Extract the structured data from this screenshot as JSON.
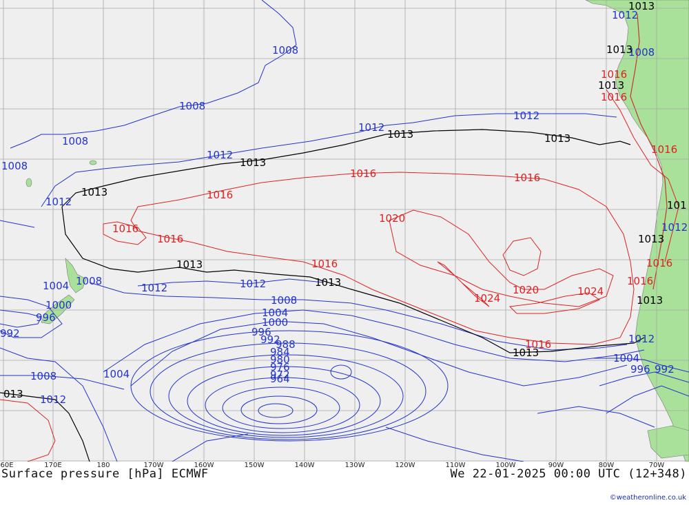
{
  "title_left": "Surface pressure [hPa] ECMWF",
  "title_right": "We 22-01-2025 00:00 UTC (12+348)",
  "credit": "©weatheronline.co.uk",
  "colors": {
    "ocean": "#efefef",
    "land": "#a9e09a",
    "grid": "#a8a8a8",
    "isobar_low": "#2233cc",
    "isobar_mid": "#000000",
    "isobar_high": "#dd2222"
  },
  "longitude_labels": [
    "60E",
    "170E",
    "180",
    "170W",
    "160W",
    "150W",
    "140W",
    "130W",
    "120W",
    "110W",
    "100W",
    "90W",
    "80W",
    "70W"
  ],
  "isobar_labels": [
    {
      "text": "1008",
      "level": "low"
    },
    {
      "text": "1008",
      "level": "low"
    },
    {
      "text": "1008",
      "level": "low"
    },
    {
      "text": "1008",
      "level": "low"
    },
    {
      "text": "1012",
      "level": "low"
    },
    {
      "text": "1012",
      "level": "low"
    },
    {
      "text": "1012",
      "level": "low"
    },
    {
      "text": "1012",
      "level": "low"
    },
    {
      "text": "1012",
      "level": "low"
    },
    {
      "text": "1012",
      "level": "low"
    },
    {
      "text": "1012",
      "level": "low"
    },
    {
      "text": "1008",
      "level": "low"
    },
    {
      "text": "1004",
      "level": "low"
    },
    {
      "text": "1000",
      "level": "low"
    },
    {
      "text": "996",
      "level": "low"
    },
    {
      "text": "992",
      "level": "low"
    },
    {
      "text": "988",
      "level": "low"
    },
    {
      "text": "984",
      "level": "low"
    },
    {
      "text": "980",
      "level": "low"
    },
    {
      "text": "976",
      "level": "low"
    },
    {
      "text": "972",
      "level": "low"
    },
    {
      "text": "964",
      "level": "low"
    },
    {
      "text": "1004",
      "level": "low"
    },
    {
      "text": "1000",
      "level": "low"
    },
    {
      "text": "996",
      "level": "low"
    },
    {
      "text": "992",
      "level": "low"
    },
    {
      "text": "1008",
      "level": "low"
    },
    {
      "text": "1008",
      "level": "low"
    },
    {
      "text": "1004",
      "level": "low"
    },
    {
      "text": "1012",
      "level": "low"
    },
    {
      "text": "1004",
      "level": "low"
    },
    {
      "text": "996",
      "level": "low"
    },
    {
      "text": "992",
      "level": "low"
    },
    {
      "text": "1012",
      "level": "low"
    },
    {
      "text": "1012",
      "level": "low"
    },
    {
      "text": "1008",
      "level": "low"
    },
    {
      "text": "1013",
      "level": "mid"
    },
    {
      "text": "1013",
      "level": "mid"
    },
    {
      "text": "1013",
      "level": "mid"
    },
    {
      "text": "1013",
      "level": "mid"
    },
    {
      "text": "1013",
      "level": "mid"
    },
    {
      "text": "1013",
      "level": "mid"
    },
    {
      "text": "1013",
      "level": "mid"
    },
    {
      "text": "013",
      "level": "mid"
    },
    {
      "text": "1013",
      "level": "mid"
    },
    {
      "text": "1013",
      "level": "mid"
    },
    {
      "text": "1013",
      "level": "mid"
    },
    {
      "text": "1013",
      "level": "mid"
    },
    {
      "text": "1013",
      "level": "mid"
    },
    {
      "text": "101",
      "level": "mid"
    },
    {
      "text": "1016",
      "level": "high"
    },
    {
      "text": "1016",
      "level": "high"
    },
    {
      "text": "1016",
      "level": "high"
    },
    {
      "text": "1016",
      "level": "high"
    },
    {
      "text": "1016",
      "level": "high"
    },
    {
      "text": "1016",
      "level": "high"
    },
    {
      "text": "1016",
      "level": "high"
    },
    {
      "text": "1020",
      "level": "high"
    },
    {
      "text": "1020",
      "level": "high"
    },
    {
      "text": "1024",
      "level": "high"
    },
    {
      "text": "1024",
      "level": "high"
    },
    {
      "text": "1016",
      "level": "high"
    },
    {
      "text": "1016",
      "level": "high"
    },
    {
      "text": "1016",
      "level": "high"
    },
    {
      "text": "1016",
      "level": "high"
    },
    {
      "text": "1016",
      "level": "high"
    }
  ]
}
